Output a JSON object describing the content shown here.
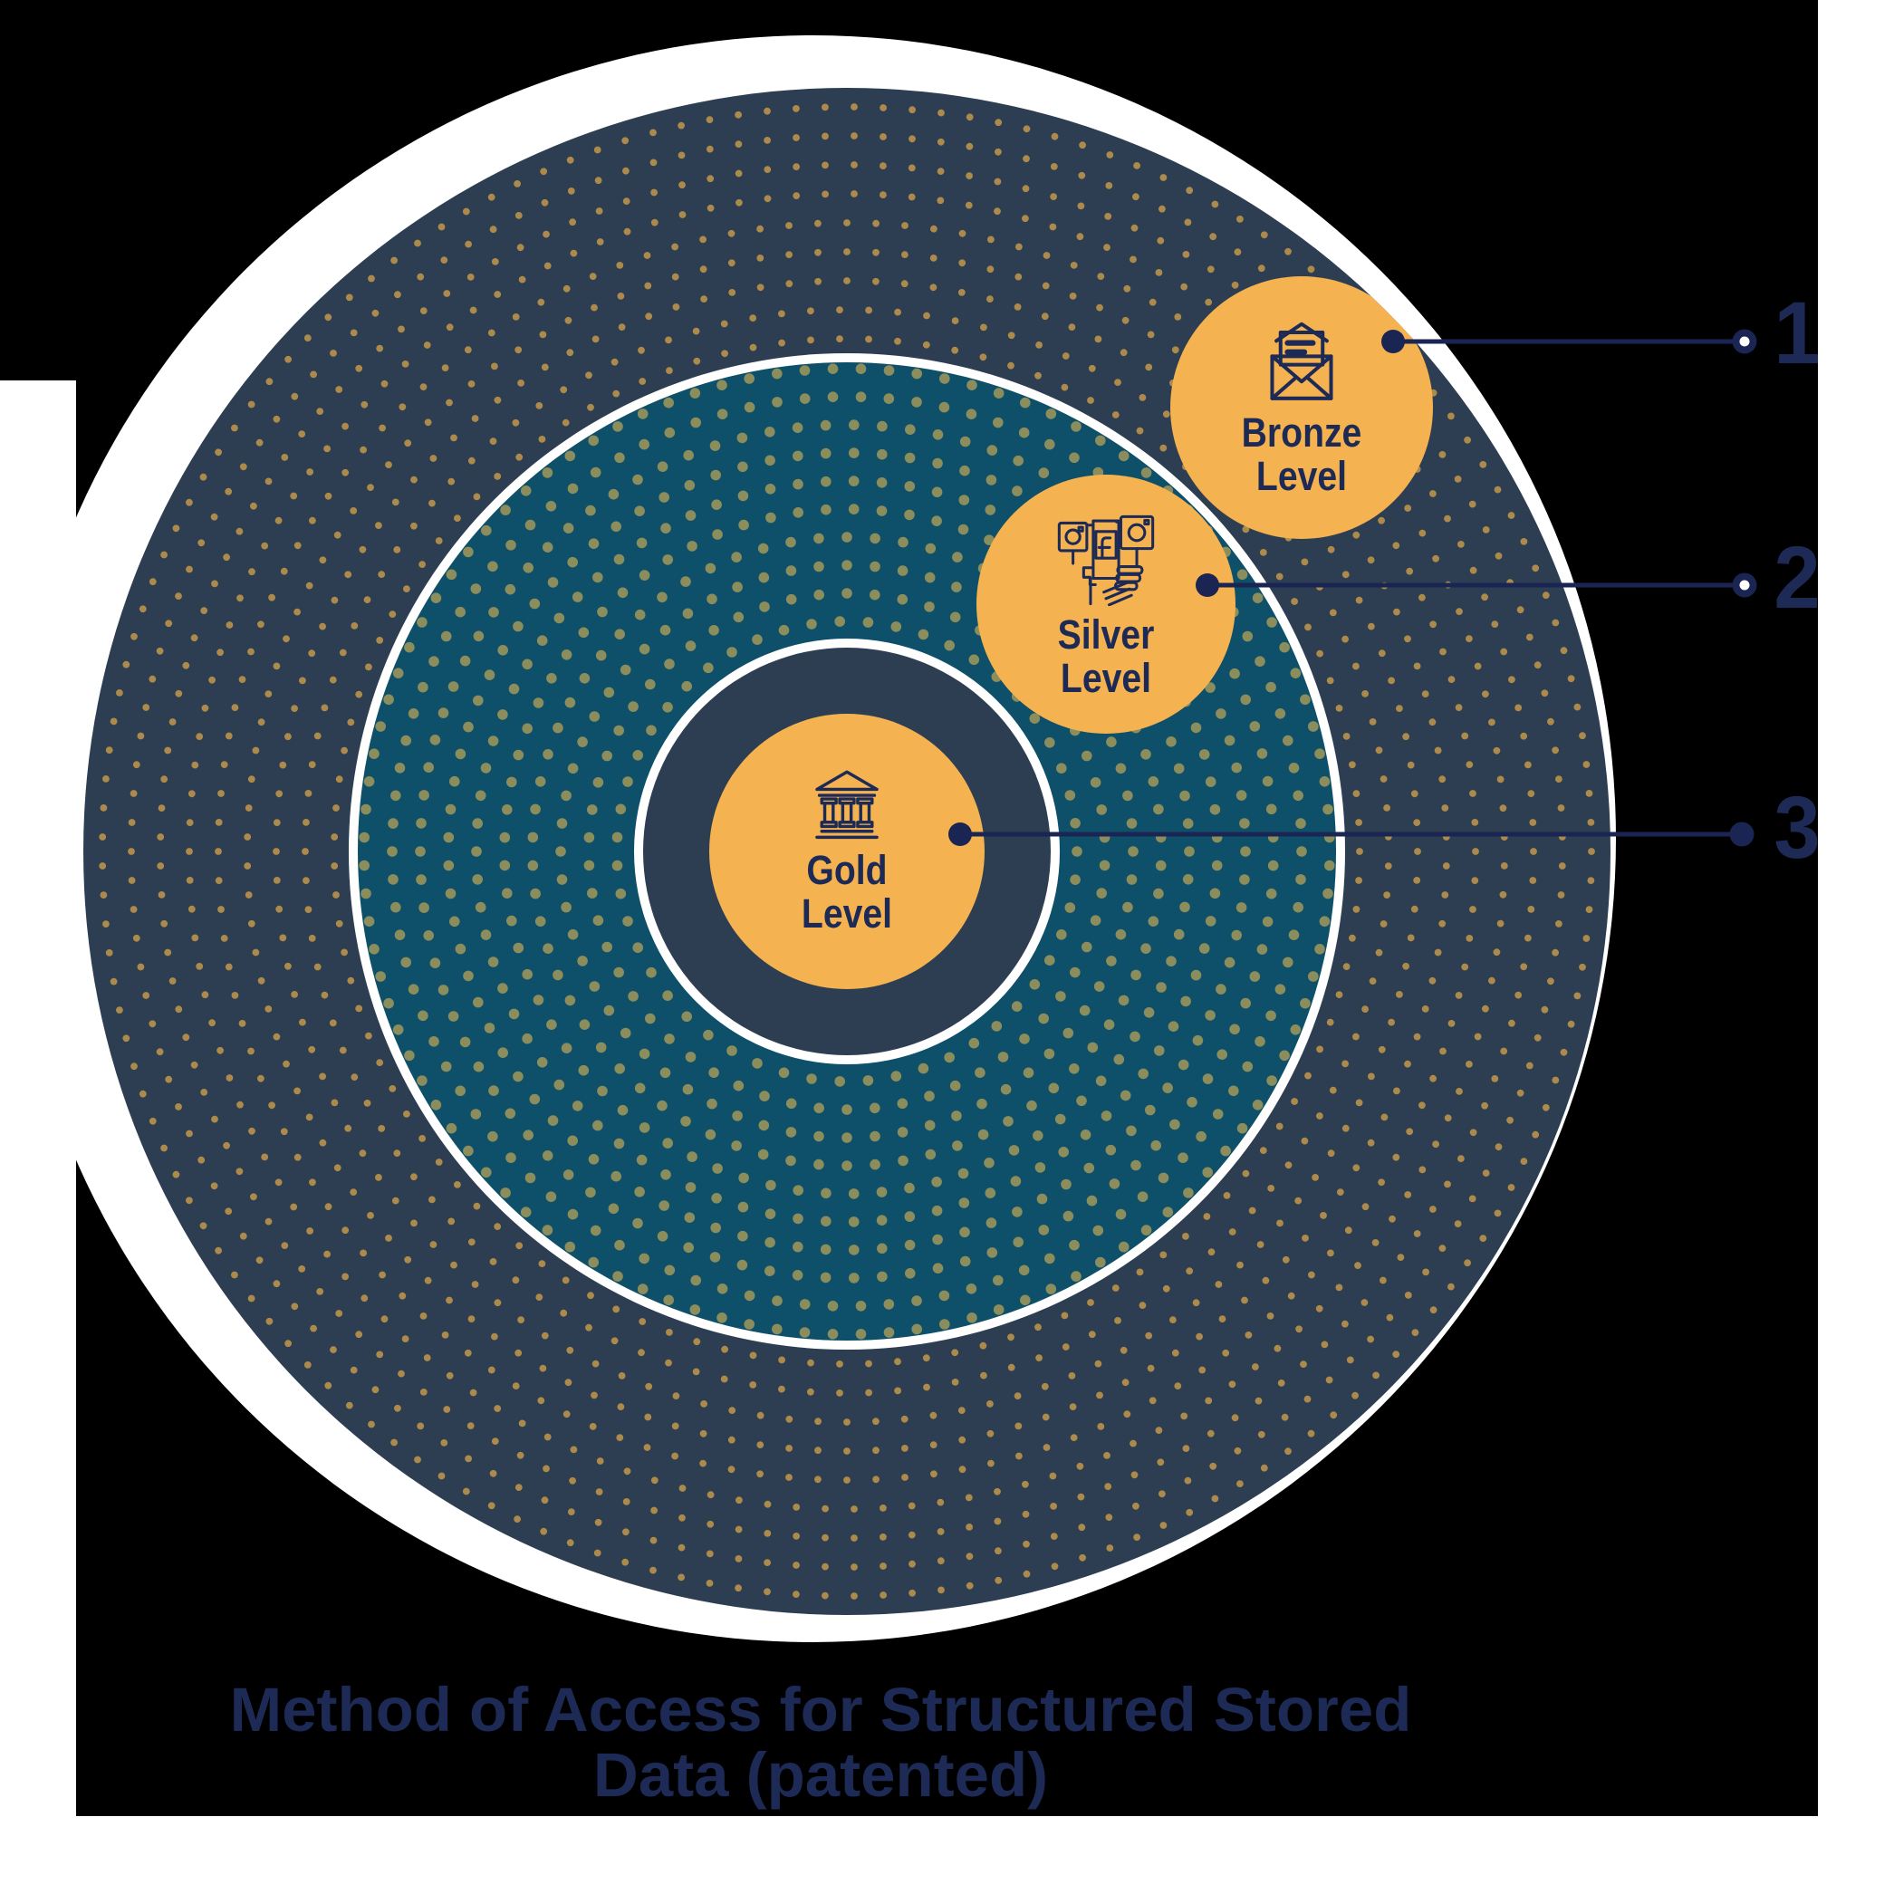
{
  "title": {
    "line1": "Method of Access for Structured Stored",
    "line2": "Data (patented)"
  },
  "levels": {
    "bronze": {
      "label": "Bronze Level",
      "icon": "envelope-icon"
    },
    "silver": {
      "label": "Silver Level",
      "icon": "social-media-icon"
    },
    "gold": {
      "label": "Gold Level",
      "icon": "bank-icon"
    }
  },
  "callouts": [
    {
      "number": "1",
      "target": "Bronze Level"
    },
    {
      "number": "2",
      "target": "Silver Level"
    },
    {
      "number": "3",
      "target": "Gold Level"
    }
  ],
  "colors": {
    "outer_ring_bg": "#2d3e52",
    "outer_ring_dot": "#ab8a4c",
    "middle_ring_bg": "#0e5069",
    "middle_ring_dot": "#8b8d5d",
    "inner_ring_bg": "#2d3e52",
    "level_circle_orange": "#f4b350",
    "text_navy": "#1e2a56",
    "line_navy": "#1b2553",
    "ring_white": "#ffffff"
  }
}
